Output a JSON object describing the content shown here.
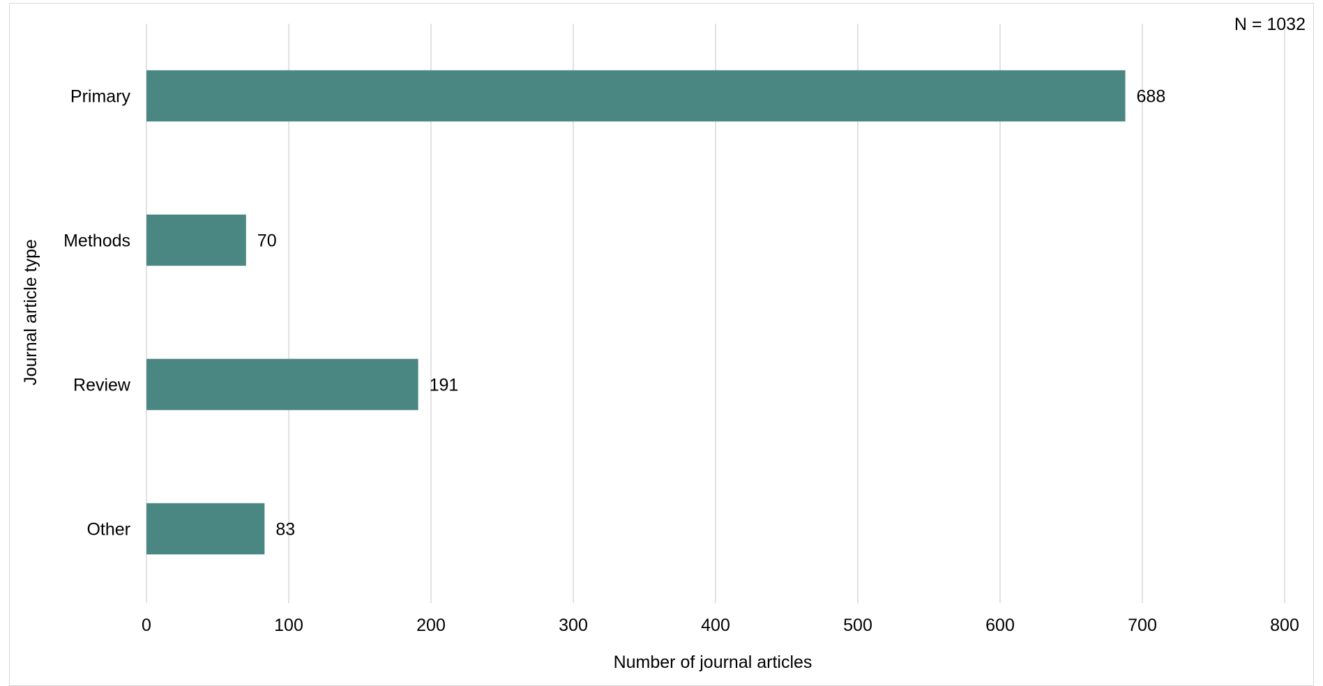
{
  "chart_data": {
    "type": "bar",
    "orientation": "horizontal",
    "categories": [
      "Primary",
      "Methods",
      "Review",
      "Other"
    ],
    "values": [
      688,
      70,
      191,
      83
    ],
    "data_labels": [
      "688",
      "70",
      "191",
      "83"
    ],
    "xlabel": "Number of journal articles",
    "ylabel": "Journal article type",
    "xlim": [
      0,
      800
    ],
    "xticks": [
      "0",
      "100",
      "200",
      "300",
      "400",
      "500",
      "600",
      "700",
      "800"
    ],
    "annotation": "N = 1032",
    "grid": "vertical",
    "legend": "none",
    "bar_color": "#4a8782",
    "grid_color": "#d9d9d9"
  }
}
